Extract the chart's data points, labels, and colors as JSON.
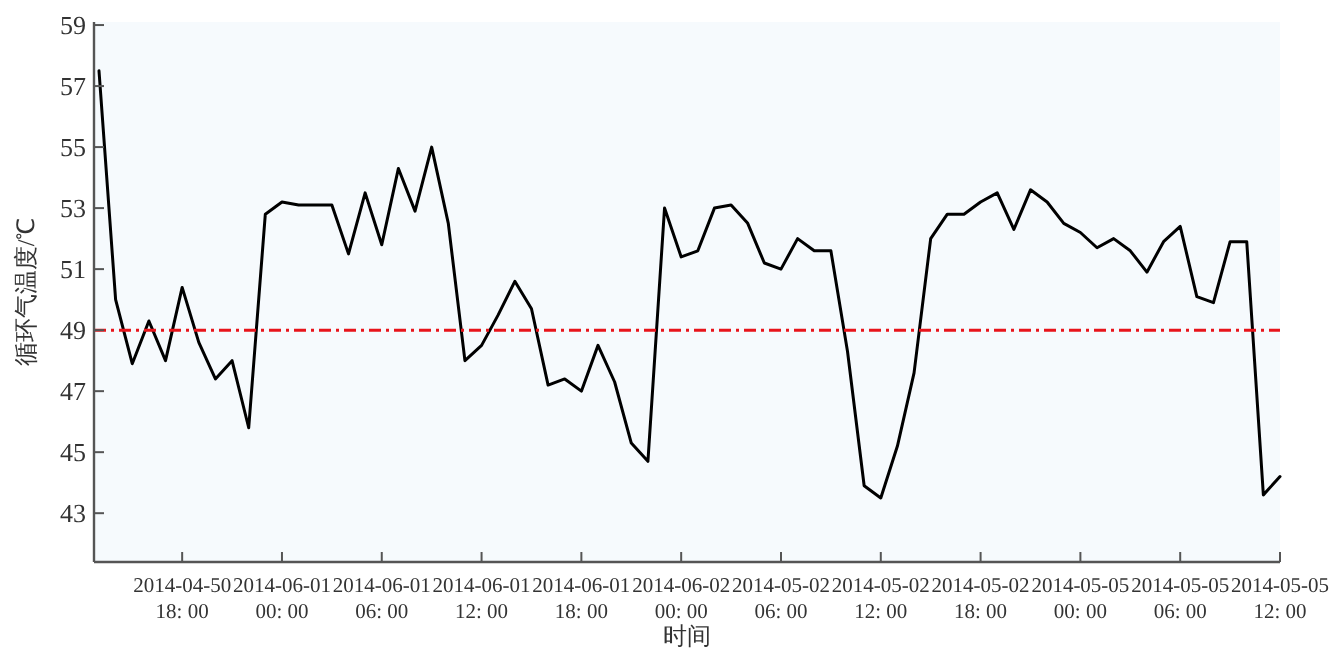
{
  "chart_data": {
    "type": "line",
    "xlabel": "时间",
    "ylabel": "循环气温度/℃",
    "categories": [
      null,
      null,
      null,
      null,
      null,
      "2014-04-50\n18: 00",
      null,
      null,
      null,
      null,
      null,
      "2014-06-01\n00: 00",
      null,
      null,
      null,
      null,
      null,
      "2014-06-01\n06: 00",
      null,
      null,
      null,
      null,
      null,
      "2014-06-01\n12: 00",
      null,
      null,
      null,
      null,
      null,
      "2014-06-01\n18: 00",
      null,
      null,
      null,
      null,
      null,
      "2014-06-02\n00: 00",
      null,
      null,
      null,
      null,
      null,
      "2014-05-02\n06: 00",
      null,
      null,
      null,
      null,
      null,
      "2014-05-02\n12: 00",
      null,
      null,
      null,
      null,
      null,
      "2014-05-02\n18: 00",
      null,
      null,
      null,
      null,
      null,
      "2014-05-05\n00: 00",
      null,
      null,
      null,
      null,
      null,
      "2014-05-05\n06: 00",
      null,
      null,
      null,
      null,
      null,
      "2014-05-05\n12: 00"
    ],
    "series": [
      {
        "color": "#000000",
        "values": [
          57.5,
          50.0,
          47.9,
          49.3,
          48.0,
          50.4,
          48.6,
          47.4,
          48.0,
          45.8,
          52.8,
          53.2,
          53.1,
          53.1,
          53.1,
          51.5,
          53.5,
          51.8,
          54.3,
          52.9,
          55.0,
          52.5,
          48.0,
          48.5,
          49.5,
          50.6,
          49.7,
          47.2,
          47.4,
          47.0,
          48.5,
          47.3,
          45.3,
          44.7,
          53.0,
          51.4,
          51.6,
          53.0,
          53.1,
          52.5,
          51.2,
          51.0,
          52.0,
          51.6,
          51.6,
          48.3,
          43.9,
          43.5,
          45.2,
          47.6,
          52.0,
          52.8,
          52.8,
          53.2,
          53.5,
          52.3,
          53.6,
          53.2,
          52.5,
          52.2,
          51.7,
          52.0,
          51.6,
          50.9,
          51.9,
          52.4,
          50.1,
          49.9,
          51.9,
          51.9,
          43.6,
          44.2
        ]
      }
    ],
    "ylim": [
      41.4,
      59.1
    ],
    "yticks": [
      43,
      45,
      47,
      49,
      51,
      53,
      55,
      57,
      59
    ],
    "ref_lines": [
      {
        "axis": "y",
        "value": 49,
        "color": "#e8141b",
        "line_style": "dashdot"
      }
    ],
    "grid": false
  }
}
